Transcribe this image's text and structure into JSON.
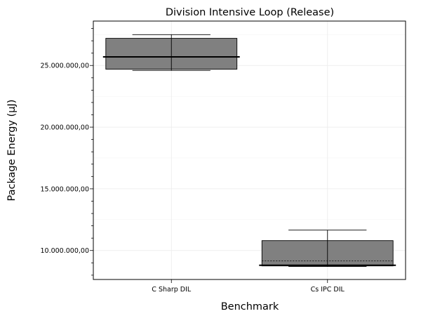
{
  "chart_data": {
    "type": "box",
    "title": "Division Intensive Loop (Release)",
    "xlabel": "Benchmark",
    "ylabel": "Package Energy (µJ)",
    "categories": [
      "C Sharp DIL",
      "Cs IPC DIL"
    ],
    "ylim": [
      7650000,
      28600000
    ],
    "y_ticks": [
      10000000,
      15000000,
      20000000,
      25000000
    ],
    "y_tick_labels": [
      "10.000.000,00",
      "15.000.000,00",
      "20.000.000,00",
      "25.000.000,00"
    ],
    "grid": true,
    "boxes": [
      {
        "category": "C Sharp DIL",
        "whisker_low": 24600000,
        "q1": 24700000,
        "median": 25700000,
        "mean": 25700000,
        "q3": 27200000,
        "whisker_high": 27500000
      },
      {
        "category": "Cs IPC DIL",
        "whisker_low": 8700000,
        "q1": 8750000,
        "median": 8800000,
        "mean": 9150000,
        "q3": 10800000,
        "whisker_high": 11650000
      }
    ],
    "colors": {
      "box_fill": "#808080",
      "box_edge": "#000000",
      "grid": "#ebebeb"
    }
  }
}
